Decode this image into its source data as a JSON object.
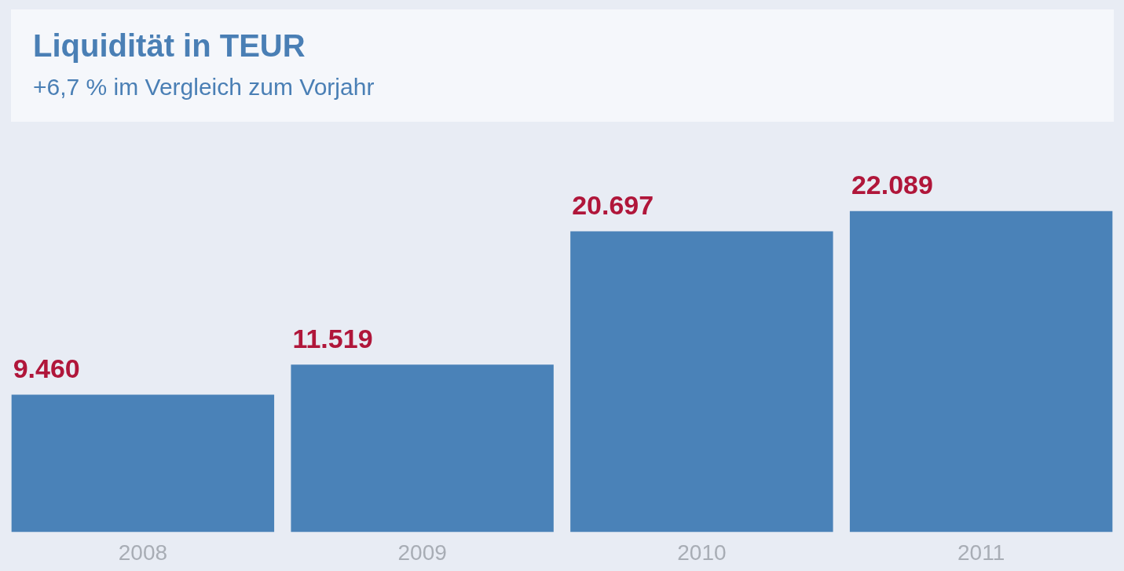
{
  "chart_data": {
    "type": "bar",
    "title": "Liquidität in TEUR",
    "subtitle": "+6,7 % im Vergleich zum Vorjahr",
    "categories": [
      "2008",
      "2009",
      "2010",
      "2011"
    ],
    "values": [
      9460,
      11519,
      20697,
      22089
    ],
    "value_labels": [
      "9.460",
      "11.519",
      "20.697",
      "22.089"
    ],
    "color": "#4a82b8",
    "grid": false,
    "legend": false
  }
}
